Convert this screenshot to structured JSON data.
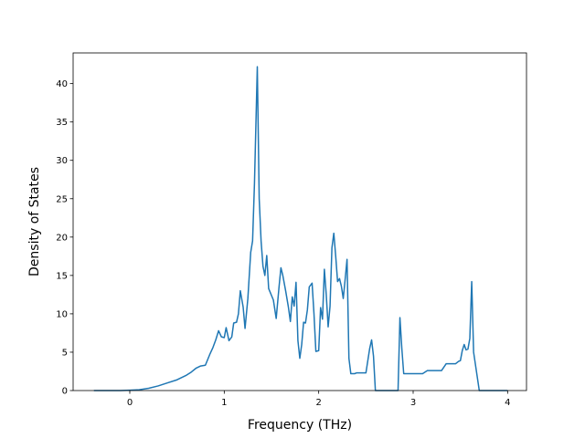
{
  "chart_data": {
    "type": "line",
    "title": "",
    "xlabel": "Frequency (THz)",
    "ylabel": "Density of States",
    "xlim": [
      -0.6,
      4.2
    ],
    "ylim": [
      0,
      44
    ],
    "xticks": [
      0,
      1,
      2,
      3,
      4
    ],
    "yticks": [
      0,
      5,
      10,
      15,
      20,
      25,
      30,
      35,
      40
    ],
    "grid": false,
    "legend": "none",
    "series": [
      {
        "color": "#1f77b4",
        "x": [
          -0.38,
          -0.1,
          0.0,
          0.1,
          0.2,
          0.3,
          0.4,
          0.5,
          0.6,
          0.65,
          0.7,
          0.75,
          0.8,
          0.85,
          0.88,
          0.91,
          0.94,
          0.97,
          1.0,
          1.02,
          1.05,
          1.08,
          1.1,
          1.13,
          1.15,
          1.17,
          1.2,
          1.22,
          1.25,
          1.28,
          1.3,
          1.32,
          1.35,
          1.37,
          1.39,
          1.41,
          1.43,
          1.45,
          1.47,
          1.5,
          1.52,
          1.55,
          1.58,
          1.6,
          1.62,
          1.65,
          1.68,
          1.7,
          1.72,
          1.74,
          1.76,
          1.78,
          1.8,
          1.82,
          1.84,
          1.86,
          1.88,
          1.9,
          1.93,
          1.95,
          1.97,
          2.0,
          2.02,
          2.04,
          2.06,
          2.08,
          2.1,
          2.12,
          2.14,
          2.16,
          2.18,
          2.2,
          2.22,
          2.24,
          2.26,
          2.28,
          2.3,
          2.32,
          2.34,
          2.36,
          2.38,
          2.4,
          2.45,
          2.5,
          2.54,
          2.56,
          2.58,
          2.6,
          2.62,
          2.65,
          2.7,
          2.75,
          2.8,
          2.84,
          2.86,
          2.88,
          2.9,
          2.95,
          3.0,
          3.05,
          3.1,
          3.15,
          3.2,
          3.25,
          3.3,
          3.35,
          3.4,
          3.45,
          3.48,
          3.5,
          3.52,
          3.54,
          3.56,
          3.58,
          3.6,
          3.62,
          3.64,
          3.7,
          3.8,
          3.9,
          4.0
        ],
        "y": [
          0.0,
          0.0,
          0.05,
          0.1,
          0.3,
          0.6,
          1.0,
          1.4,
          2.0,
          2.4,
          2.9,
          3.2,
          3.3,
          4.8,
          5.6,
          6.6,
          7.8,
          7.0,
          6.9,
          8.2,
          6.5,
          7.0,
          8.8,
          8.9,
          10.0,
          13.0,
          10.9,
          8.1,
          12.0,
          18.0,
          19.5,
          27.0,
          42.2,
          25.0,
          19.5,
          16.2,
          15.0,
          17.6,
          13.3,
          12.4,
          11.8,
          9.4,
          13.5,
          16.0,
          15.0,
          13.0,
          10.8,
          9.0,
          12.2,
          11.0,
          14.1,
          6.5,
          4.2,
          6.0,
          8.9,
          8.8,
          10.5,
          13.5,
          14.0,
          10.0,
          5.1,
          5.2,
          10.8,
          9.3,
          15.8,
          12.5,
          8.3,
          11.0,
          18.6,
          20.5,
          17.5,
          14.2,
          14.6,
          13.6,
          12.0,
          14.5,
          17.1,
          4.2,
          2.2,
          2.2,
          2.2,
          2.3,
          2.3,
          2.3,
          5.5,
          6.6,
          4.5,
          0.0,
          0.0,
          0.0,
          0.0,
          0.0,
          0.0,
          0.0,
          9.5,
          5.5,
          2.2,
          2.2,
          2.2,
          2.2,
          2.2,
          2.6,
          2.6,
          2.6,
          2.6,
          3.5,
          3.5,
          3.5,
          3.8,
          3.9,
          5.2,
          6.0,
          5.3,
          5.4,
          6.8,
          14.2,
          5.0,
          0.0,
          0.0,
          0.0,
          0.0
        ]
      }
    ]
  }
}
